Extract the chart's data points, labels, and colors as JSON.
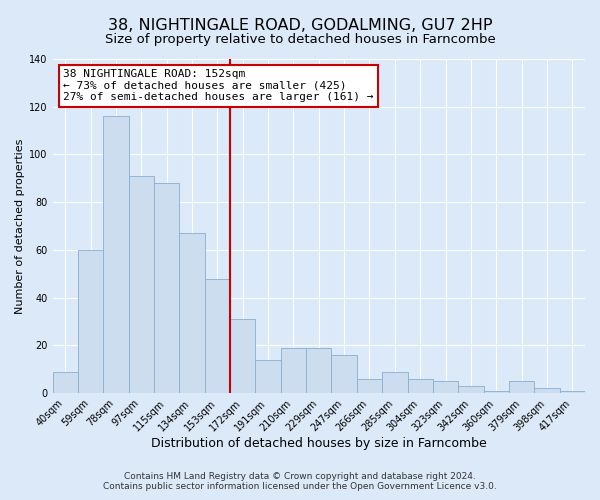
{
  "title": "38, NIGHTINGALE ROAD, GODALMING, GU7 2HP",
  "subtitle": "Size of property relative to detached houses in Farncombe",
  "xlabel": "Distribution of detached houses by size in Farncombe",
  "ylabel": "Number of detached properties",
  "bar_labels": [
    "40sqm",
    "59sqm",
    "78sqm",
    "97sqm",
    "115sqm",
    "134sqm",
    "153sqm",
    "172sqm",
    "191sqm",
    "210sqm",
    "229sqm",
    "247sqm",
    "266sqm",
    "285sqm",
    "304sqm",
    "323sqm",
    "342sqm",
    "360sqm",
    "379sqm",
    "398sqm",
    "417sqm"
  ],
  "bar_values": [
    9,
    60,
    116,
    91,
    88,
    67,
    48,
    31,
    14,
    19,
    19,
    16,
    6,
    9,
    6,
    5,
    3,
    1,
    5,
    2,
    1
  ],
  "bar_color": "#cdddf0",
  "bar_edge_color": "#88aed0",
  "vline_color": "#cc0000",
  "annotation_text": "38 NIGHTINGALE ROAD: 152sqm\n← 73% of detached houses are smaller (425)\n27% of semi-detached houses are larger (161) →",
  "annotation_box_color": "#ffffff",
  "annotation_box_edge_color": "#cc0000",
  "ylim": [
    0,
    140
  ],
  "yticks": [
    0,
    20,
    40,
    60,
    80,
    100,
    120,
    140
  ],
  "footer_line1": "Contains HM Land Registry data © Crown copyright and database right 2024.",
  "footer_line2": "Contains public sector information licensed under the Open Government Licence v3.0.",
  "background_color": "#dce9f8",
  "plot_background_color": "#dce9f8",
  "title_fontsize": 11.5,
  "subtitle_fontsize": 9.5,
  "xlabel_fontsize": 9,
  "ylabel_fontsize": 8,
  "tick_fontsize": 7,
  "footer_fontsize": 6.5,
  "annotation_fontsize": 8
}
